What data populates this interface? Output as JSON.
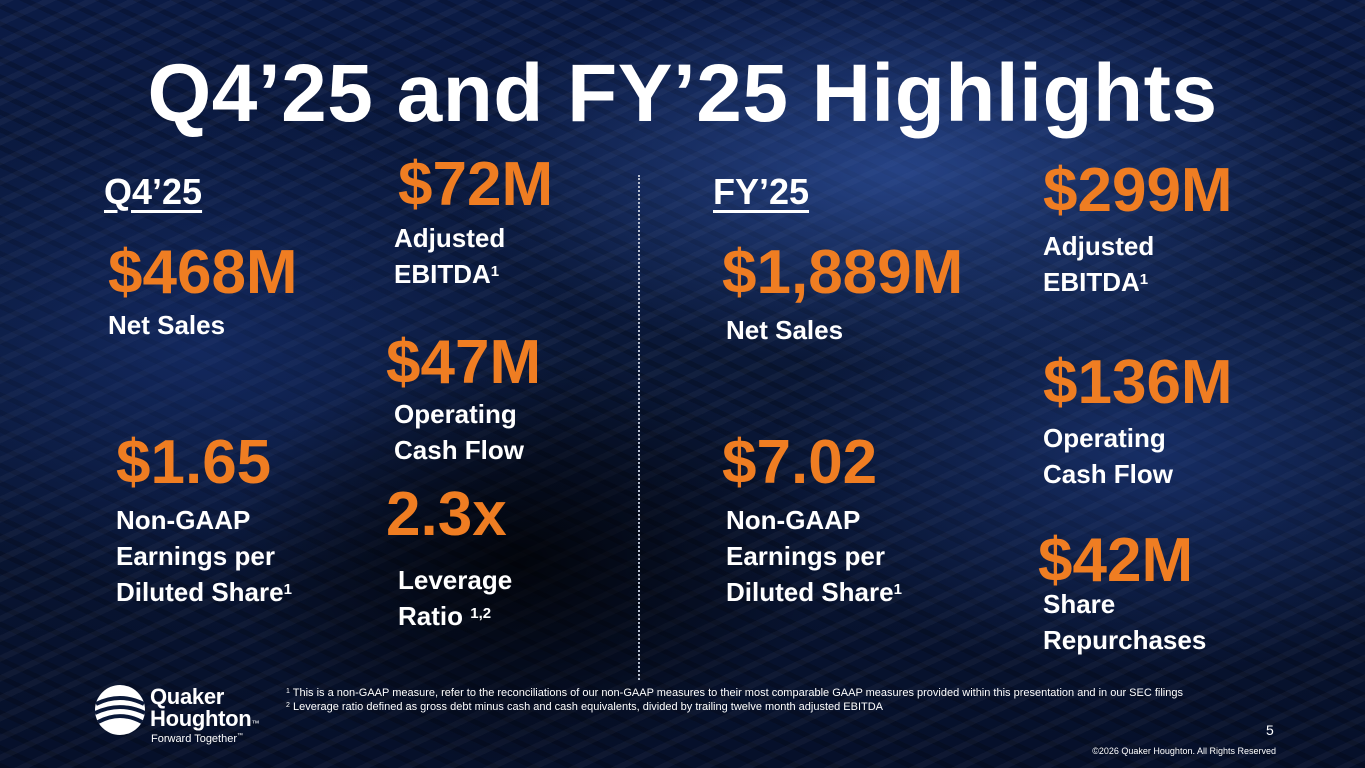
{
  "title": "Q4’25 and FY’25 Highlights",
  "q4": {
    "heading": "Q4’25",
    "net_sales": {
      "value": "$468M",
      "label": "Net Sales"
    },
    "eps": {
      "value": "$1.65",
      "line1": "Non-GAAP",
      "line2": "Earnings per",
      "line3": "Diluted Share",
      "sup": "1"
    },
    "ebitda": {
      "value": "$72M",
      "line1": "Adjusted",
      "line2": "EBITDA",
      "sup": "1"
    },
    "cash_flow": {
      "value": "$47M",
      "line1": "Operating",
      "line2": "Cash Flow"
    },
    "leverage": {
      "value": "2.3x",
      "line1": "Leverage",
      "line2": "Ratio ",
      "sup": "1,2"
    }
  },
  "fy": {
    "heading": "FY’25",
    "net_sales": {
      "value": "$1,889M",
      "label": "Net Sales"
    },
    "eps": {
      "value": "$7.02",
      "line1": "Non-GAAP",
      "line2": "Earnings per",
      "line3": "Diluted Share",
      "sup": "1"
    },
    "ebitda": {
      "value": "$299M",
      "line1": "Adjusted",
      "line2": "EBITDA",
      "sup": "1"
    },
    "cash_flow": {
      "value": "$136M",
      "line1": "Operating",
      "line2": "Cash Flow"
    },
    "repurchases": {
      "value": "$42M",
      "line1": "Share",
      "line2": "Repurchases"
    }
  },
  "footnotes": [
    {
      "marker": "1",
      "text": " This is a non-GAAP measure, refer to the reconciliations of our non-GAAP measures to their most comparable GAAP measures provided within this presentation and in our SEC filings"
    },
    {
      "marker": "2",
      "text": " Leverage ratio defined as gross debt minus cash and cash equivalents, divided by trailing twelve month adjusted EBITDA"
    }
  ],
  "page_number": "5",
  "copyright": "©2026 Quaker Houghton. All Rights Reserved",
  "logo": {
    "line1": "Quaker",
    "line2": "Houghton",
    "tm": "™",
    "tagline": "Forward Together",
    "tagline_tm": "™"
  },
  "colors": {
    "accent": "#ef7d22",
    "text": "#ffffff",
    "background": "#0a1838"
  }
}
